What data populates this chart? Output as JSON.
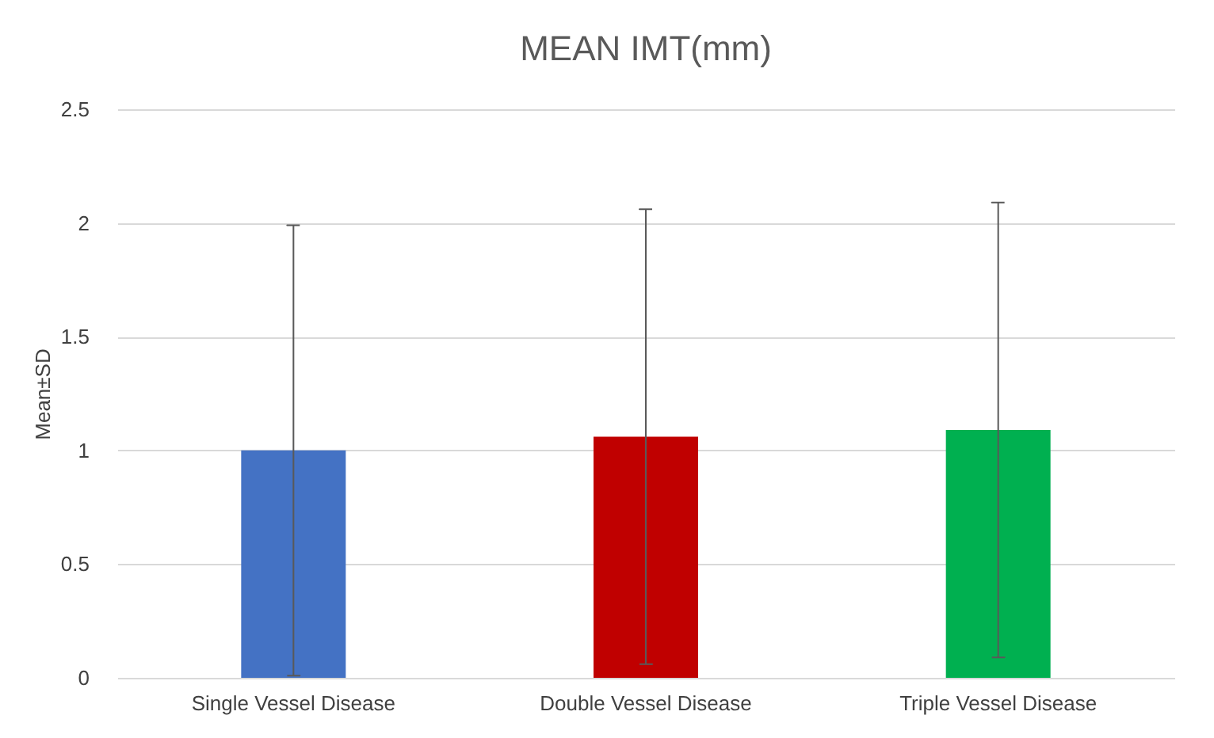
{
  "chart_data": {
    "type": "bar",
    "title": "MEAN IMT(mm)",
    "ylabel": "Mean±SD",
    "categories": [
      "Single Vessel Disease",
      "Double Vessel Disease",
      "Triple Vessel Disease"
    ],
    "values": [
      1.0,
      1.06,
      1.09
    ],
    "colors": [
      "#4472c4",
      "#c00000",
      "#00b050"
    ],
    "errors": [
      0.99,
      1.0,
      1.0
    ],
    "ylim": [
      0,
      2.5
    ],
    "yticks": [
      0,
      0.5,
      1,
      1.5,
      2,
      2.5
    ],
    "grid": "y"
  }
}
